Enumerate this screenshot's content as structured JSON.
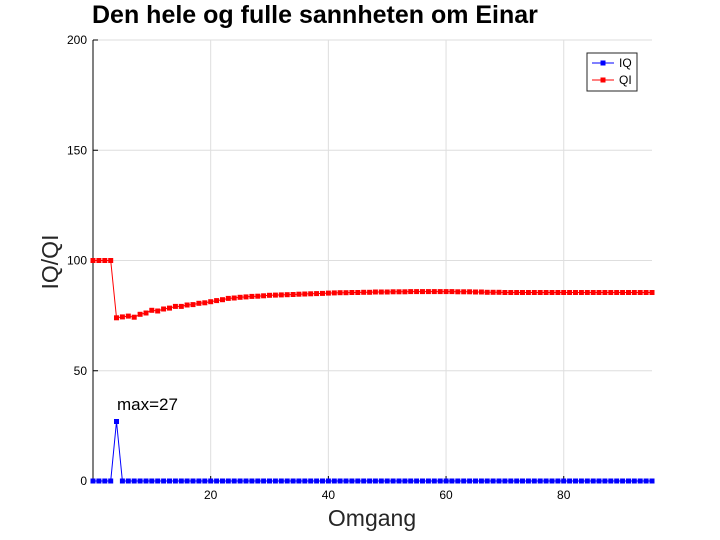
{
  "chart_data": {
    "type": "line",
    "title": "Den hele og fulle sannheten om Einar",
    "xlabel": "Omgang",
    "ylabel": "IQ/QI",
    "xlim": [
      0,
      95
    ],
    "ylim": [
      0,
      200
    ],
    "xticks": [
      20,
      40,
      60,
      80
    ],
    "yticks": [
      0,
      50,
      100,
      150,
      200
    ],
    "grid": true,
    "legend_position": "top-right",
    "annotation": {
      "text": "max=27",
      "x": 4,
      "y": 27
    },
    "series": [
      {
        "name": "IQ",
        "color": "#0000ff",
        "x": [
          0,
          1,
          2,
          3,
          4,
          5,
          6,
          7,
          8,
          9,
          10,
          11,
          12,
          13,
          14,
          15,
          16,
          17,
          18,
          19,
          20,
          21,
          22,
          23,
          24,
          25,
          26,
          27,
          28,
          29,
          30,
          31,
          32,
          33,
          34,
          35,
          36,
          37,
          38,
          39,
          40,
          41,
          42,
          43,
          44,
          45,
          46,
          47,
          48,
          49,
          50,
          51,
          52,
          53,
          54,
          55,
          56,
          57,
          58,
          59,
          60,
          61,
          62,
          63,
          64,
          65,
          66,
          67,
          68,
          69,
          70,
          71,
          72,
          73,
          74,
          75,
          76,
          77,
          78,
          79,
          80,
          81,
          82,
          83,
          84,
          85,
          86,
          87,
          88,
          89,
          90,
          91,
          92,
          93,
          94,
          95
        ],
        "y": [
          0,
          0,
          0,
          0,
          27,
          0,
          0,
          0,
          0,
          0,
          0,
          0,
          0,
          0,
          0,
          0,
          0,
          0,
          0,
          0,
          0,
          0,
          0,
          0,
          0,
          0,
          0,
          0,
          0,
          0,
          0,
          0,
          0,
          0,
          0,
          0,
          0,
          0,
          0,
          0,
          0,
          0,
          0,
          0,
          0,
          0,
          0,
          0,
          0,
          0,
          0,
          0,
          0,
          0,
          0,
          0,
          0,
          0,
          0,
          0,
          0,
          0,
          0,
          0,
          0,
          0,
          0,
          0,
          0,
          0,
          0,
          0,
          0,
          0,
          0,
          0,
          0,
          0,
          0,
          0,
          0,
          0,
          0,
          0,
          0,
          0,
          0,
          0,
          0,
          0,
          0,
          0,
          0,
          0,
          0,
          0
        ]
      },
      {
        "name": "QI",
        "color": "#ff0000",
        "x": [
          0,
          1,
          2,
          3,
          4,
          5,
          6,
          7,
          8,
          9,
          10,
          11,
          12,
          13,
          14,
          15,
          16,
          17,
          18,
          19,
          20,
          21,
          22,
          23,
          24,
          25,
          26,
          27,
          28,
          29,
          30,
          31,
          32,
          33,
          34,
          35,
          36,
          37,
          38,
          39,
          40,
          41,
          42,
          43,
          44,
          45,
          46,
          47,
          48,
          49,
          50,
          51,
          52,
          53,
          54,
          55,
          56,
          57,
          58,
          59,
          60,
          61,
          62,
          63,
          64,
          65,
          66,
          67,
          68,
          69,
          70,
          71,
          72,
          73,
          74,
          75,
          76,
          77,
          78,
          79,
          80,
          81,
          82,
          83,
          84,
          85,
          86,
          87,
          88,
          89,
          90,
          91,
          92,
          93,
          94,
          95
        ],
        "y": [
          100,
          100,
          100,
          100,
          74,
          74.4,
          74.8,
          74.3,
          75.6,
          76.2,
          77.4,
          77.1,
          78,
          78.4,
          79.2,
          79.2,
          79.8,
          80,
          80.6,
          80.8,
          81.3,
          81.8,
          82.2,
          82.8,
          83,
          83.3,
          83.5,
          83.7,
          83.8,
          84,
          84.2,
          84.3,
          84.4,
          84.5,
          84.6,
          84.7,
          84.8,
          84.9,
          85,
          85.1,
          85.2,
          85.3,
          85.4,
          85.4,
          85.5,
          85.5,
          85.6,
          85.6,
          85.7,
          85.7,
          85.7,
          85.8,
          85.8,
          85.8,
          85.9,
          85.9,
          85.9,
          85.9,
          85.9,
          85.9,
          85.9,
          85.9,
          85.8,
          85.8,
          85.8,
          85.7,
          85.7,
          85.6,
          85.6,
          85.6,
          85.5,
          85.5,
          85.5,
          85.5,
          85.5,
          85.5,
          85.5,
          85.5,
          85.5,
          85.5,
          85.5,
          85.5,
          85.5,
          85.5,
          85.5,
          85.5,
          85.5,
          85.5,
          85.5,
          85.5,
          85.5,
          85.5,
          85.5,
          85.5,
          85.5,
          85.5
        ]
      }
    ]
  }
}
